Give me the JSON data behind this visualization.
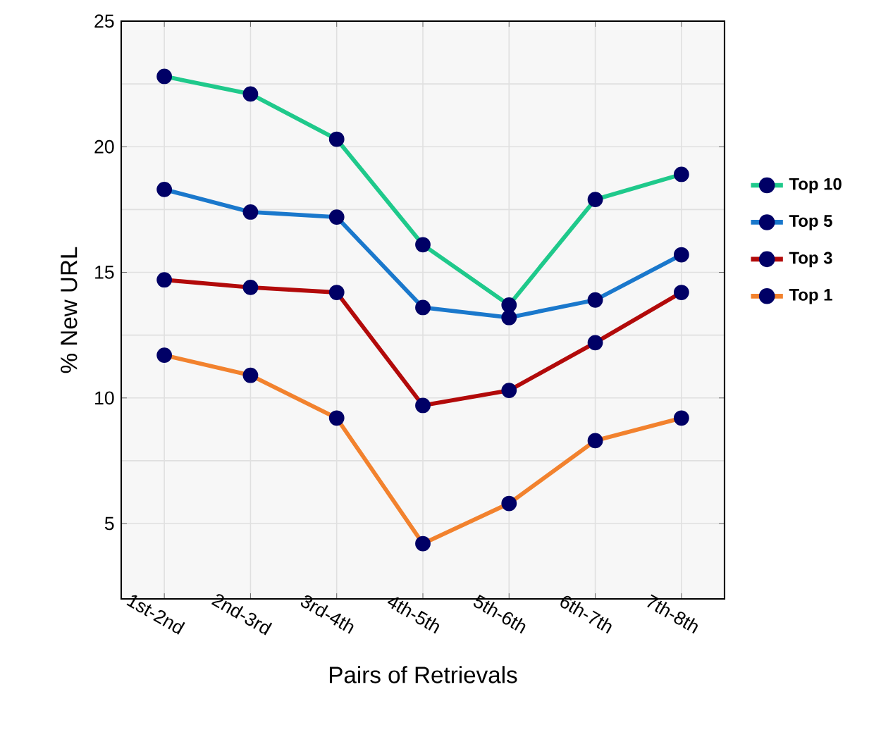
{
  "chart_data": {
    "type": "line",
    "xlabel": "Pairs of Retrievals",
    "ylabel": "% New URL",
    "categories": [
      "1st-2nd",
      "2nd-3rd",
      "3rd-4th",
      "4th-5th",
      "5th-6th",
      "6th-7th",
      "7th-8th"
    ],
    "series": [
      {
        "name": "Top 10",
        "color": "#1fc98b",
        "values": [
          22.8,
          22.1,
          20.3,
          16.1,
          13.7,
          17.9,
          18.9
        ]
      },
      {
        "name": "Top 5",
        "color": "#1a78cc",
        "values": [
          18.3,
          17.4,
          17.2,
          13.6,
          13.2,
          13.9,
          15.7
        ]
      },
      {
        "name": "Top 3",
        "color": "#b20a0a",
        "values": [
          14.7,
          14.4,
          14.2,
          9.7,
          10.3,
          12.2,
          14.2
        ]
      },
      {
        "name": "Top 1",
        "color": "#f2822e",
        "values": [
          11.7,
          10.9,
          9.2,
          4.2,
          5.8,
          8.3,
          9.2
        ]
      }
    ],
    "ylim": [
      2,
      25
    ],
    "yticks": [
      5,
      10,
      15,
      20,
      25
    ],
    "grid": true,
    "legend": "right",
    "marker": "circle",
    "line_style": "solid"
  }
}
